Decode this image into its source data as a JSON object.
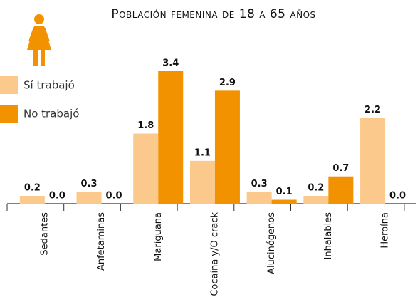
{
  "chart_data": {
    "type": "bar",
    "title": "Población femenina de 18 a 65 años",
    "categories": [
      "Sedantes",
      "Anfetaminas",
      "Mariguana",
      "Cocaína y/O crack",
      "Alucinógenos",
      "Inhalables",
      "Heroína"
    ],
    "series": [
      {
        "name": "Sí trabajó",
        "color": "#fbc98c",
        "values": [
          0.2,
          0.3,
          1.8,
          1.1,
          0.3,
          0.2,
          2.2
        ],
        "value_labels": [
          "0.2",
          "0.3",
          "1.8",
          "1.1",
          "0.3",
          "0.2",
          "2.2"
        ]
      },
      {
        "name": "No trabajó",
        "color": "#f39200",
        "values": [
          0.0,
          0.0,
          3.4,
          2.9,
          0.1,
          0.7,
          0.0
        ],
        "value_labels": [
          "0.0",
          "0.0",
          "3.4",
          "2.9",
          "0.1",
          "0.7",
          "0.0"
        ]
      }
    ]
  }
}
